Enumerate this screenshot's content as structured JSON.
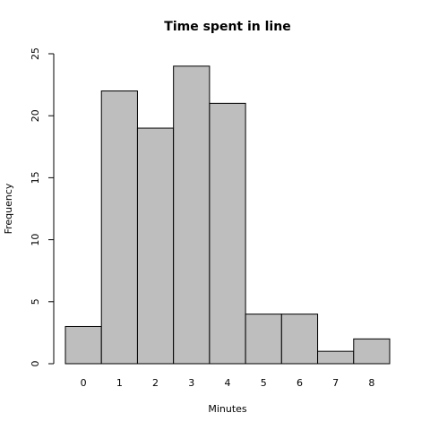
{
  "chart_data": {
    "type": "bar",
    "title": "Time spent in line",
    "x_label": "Minutes",
    "y_label": "Frequency",
    "categories": [
      "0",
      "1",
      "2",
      "3",
      "4",
      "5",
      "6",
      "7",
      "8"
    ],
    "values": [
      3,
      22,
      19,
      24,
      21,
      4,
      4,
      1,
      2
    ],
    "color": "#bebebe",
    "ylim": [
      0,
      25
    ],
    "yticks": [
      0,
      5,
      10,
      15,
      20,
      25
    ],
    "grid": false
  }
}
